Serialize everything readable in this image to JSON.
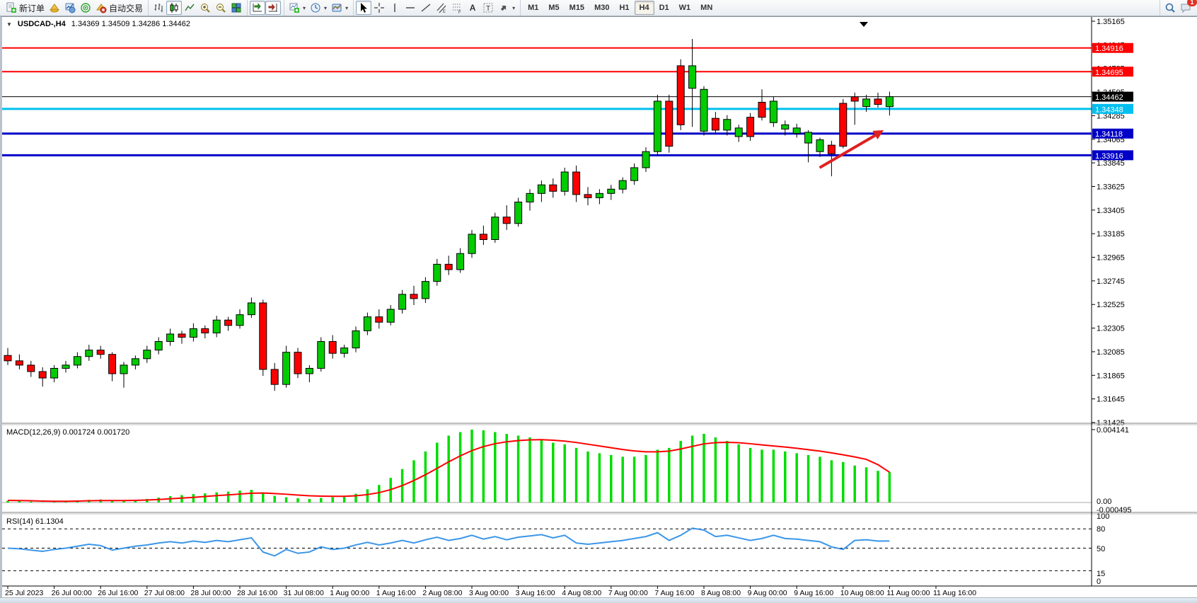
{
  "toolbar": {
    "new_order_label": "新订单",
    "autotrade_label": "自动交易",
    "text_tool_a": "A",
    "text_tool_t": "T",
    "timeframes": [
      "M1",
      "M5",
      "M15",
      "M30",
      "H1",
      "H4",
      "D1",
      "W1",
      "MN"
    ],
    "active_timeframe": "H4",
    "notification_count": "1"
  },
  "chart": {
    "symbol_title": "USDCAD-,H4",
    "ohlc_text": "1.34369 1.34509 1.34286 1.34462",
    "current_price": "1.34462",
    "price_axis_ticks": [
      "1.35165",
      "1.34945",
      "1.34725",
      "1.34505",
      "1.34285",
      "1.34065",
      "1.33845",
      "1.33625",
      "1.33405",
      "1.33185",
      "1.32965",
      "1.32745",
      "1.32525",
      "1.32305",
      "1.32085",
      "1.31865",
      "1.31645",
      "1.31425"
    ],
    "x_axis_labels": [
      "25 Jul 2023",
      "26 Jul 00:00",
      "26 Jul 16:00",
      "27 Jul 08:00",
      "28 Jul 00:00",
      "28 Jul 16:00",
      "31 Jul 08:00",
      "1 Aug 00:00",
      "1 Aug 16:00",
      "2 Aug 08:00",
      "3 Aug 00:00",
      "3 Aug 16:00",
      "4 Aug 08:00",
      "7 Aug 00:00",
      "7 Aug 16:00",
      "8 Aug 08:00",
      "9 Aug 00:00",
      "9 Aug 16:00",
      "10 Aug 08:00",
      "11 Aug 00:00",
      "11 Aug 16:00"
    ],
    "levels": [
      {
        "name": "resistance-line-1",
        "label": "1.34916",
        "price": 1.34916,
        "color": "#FF0000",
        "width": 2,
        "tag_fg": "#FFFFFF"
      },
      {
        "name": "resistance-line-2",
        "label": "1.34695",
        "price": 1.34695,
        "color": "#FF0000",
        "width": 2,
        "tag_fg": "#FFFFFF"
      },
      {
        "name": "current-price-line",
        "label": "1.34462",
        "price": 1.34462,
        "color": "#000000",
        "width": 1,
        "tag_fg": "#FFFFFF"
      },
      {
        "name": "support-line-cyan",
        "label": "1.34348",
        "price": 1.34348,
        "color": "#00BFEF",
        "width": 3,
        "tag_fg": "#FFFFFF"
      },
      {
        "name": "support-line-blue-1",
        "label": "1.34118",
        "price": 1.34118,
        "color": "#0000C8",
        "width": 3,
        "tag_fg": "#FFFFFF"
      },
      {
        "name": "support-line-blue-2",
        "label": "1.33916",
        "price": 1.33916,
        "color": "#0000C8",
        "width": 3,
        "tag_fg": "#FFFFFF"
      }
    ],
    "colors": {
      "bull": "#00CC00",
      "bear": "#FF0000",
      "wick": "#000000",
      "macd_hist": "#00DD00",
      "macd_signal": "#FF0000",
      "rsi_line": "#3C96E8",
      "arrow": "#E02020",
      "axis_text": "#000000"
    }
  },
  "macd_panel": {
    "label": "MACD(12,26,9)",
    "values_text": "0.001724 0.001720",
    "scale_max": "0.004141",
    "scale_zero": "0.00",
    "scale_min": "-0.000495"
  },
  "rsi_panel": {
    "label": "RSI(14)",
    "value_text": "61.1304",
    "scale_ticks": [
      "100",
      "80",
      "50",
      "15",
      "0"
    ],
    "level_lines": [
      80,
      50,
      15
    ]
  },
  "chart_data": {
    "type": "candlestick",
    "symbol": "USDCAD",
    "timeframe": "H4",
    "ylim": [
      1.31425,
      1.35165
    ],
    "grid": false,
    "candles_format": [
      "time",
      "open",
      "high",
      "low",
      "close"
    ],
    "candles": [
      [
        "25.07 08:00",
        1.3205,
        1.3212,
        1.3196,
        1.32
      ],
      [
        "25.07 12:00",
        1.32,
        1.3206,
        1.3192,
        1.3196
      ],
      [
        "25.07 16:00",
        1.3196,
        1.32,
        1.3185,
        1.319
      ],
      [
        "25.07 20:00",
        1.319,
        1.3194,
        1.3176,
        1.3184
      ],
      [
        "26.07 00:00",
        1.3184,
        1.3196,
        1.318,
        1.3193
      ],
      [
        "26.07 04:00",
        1.3193,
        1.32,
        1.3189,
        1.3196
      ],
      [
        "26.07 08:00",
        1.3196,
        1.3208,
        1.3193,
        1.3204
      ],
      [
        "26.07 12:00",
        1.3204,
        1.3215,
        1.32,
        1.321
      ],
      [
        "26.07 16:00",
        1.321,
        1.3214,
        1.3202,
        1.3206
      ],
      [
        "26.07 20:00",
        1.3206,
        1.3208,
        1.3181,
        1.3188
      ],
      [
        "27.07 00:00",
        1.3188,
        1.3199,
        1.3175,
        1.3196
      ],
      [
        "27.07 04:00",
        1.3196,
        1.3205,
        1.3192,
        1.3202
      ],
      [
        "27.07 08:00",
        1.3202,
        1.3214,
        1.3198,
        1.321
      ],
      [
        "27.07 12:00",
        1.321,
        1.3222,
        1.3206,
        1.3218
      ],
      [
        "27.07 16:00",
        1.3218,
        1.323,
        1.3214,
        1.3225
      ],
      [
        "27.07 20:00",
        1.3225,
        1.3228,
        1.3216,
        1.3222
      ],
      [
        "28.07 00:00",
        1.3222,
        1.3235,
        1.3218,
        1.323
      ],
      [
        "28.07 04:00",
        1.323,
        1.3233,
        1.3221,
        1.3226
      ],
      [
        "28.07 08:00",
        1.3226,
        1.3242,
        1.3222,
        1.3238
      ],
      [
        "28.07 12:00",
        1.3238,
        1.3241,
        1.3228,
        1.3233
      ],
      [
        "28.07 16:00",
        1.3233,
        1.3248,
        1.323,
        1.3243
      ],
      [
        "28.07 20:00",
        1.3243,
        1.3259,
        1.324,
        1.3254
      ],
      [
        "31.07 00:00",
        1.3254,
        1.3257,
        1.3186,
        1.3192
      ],
      [
        "31.07 04:00",
        1.3192,
        1.3198,
        1.3172,
        1.3178
      ],
      [
        "31.07 08:00",
        1.3178,
        1.3214,
        1.3175,
        1.3208
      ],
      [
        "31.07 12:00",
        1.3208,
        1.3212,
        1.3184,
        1.3188
      ],
      [
        "31.07 16:00",
        1.3188,
        1.3196,
        1.318,
        1.3193
      ],
      [
        "31.07 20:00",
        1.3193,
        1.3222,
        1.319,
        1.3218
      ],
      [
        "01.08 00:00",
        1.3218,
        1.3224,
        1.3202,
        1.3207
      ],
      [
        "01.08 04:00",
        1.3207,
        1.3215,
        1.3203,
        1.3212
      ],
      [
        "01.08 08:00",
        1.3212,
        1.3232,
        1.3208,
        1.3228
      ],
      [
        "01.08 12:00",
        1.3228,
        1.3245,
        1.3224,
        1.3241
      ],
      [
        "01.08 16:00",
        1.3241,
        1.3248,
        1.323,
        1.3236
      ],
      [
        "01.08 20:00",
        1.3236,
        1.3252,
        1.3233,
        1.3248
      ],
      [
        "02.08 00:00",
        1.3248,
        1.3266,
        1.3244,
        1.3262
      ],
      [
        "02.08 04:00",
        1.3262,
        1.327,
        1.3252,
        1.3258
      ],
      [
        "02.08 08:00",
        1.3258,
        1.3278,
        1.3254,
        1.3274
      ],
      [
        "02.08 12:00",
        1.3274,
        1.3295,
        1.327,
        1.329
      ],
      [
        "02.08 16:00",
        1.329,
        1.3298,
        1.328,
        1.3285
      ],
      [
        "02.08 20:00",
        1.3285,
        1.3305,
        1.3282,
        1.33
      ],
      [
        "03.08 00:00",
        1.33,
        1.3322,
        1.3296,
        1.3318
      ],
      [
        "03.08 04:00",
        1.3318,
        1.3326,
        1.3308,
        1.3313
      ],
      [
        "03.08 08:00",
        1.3313,
        1.3338,
        1.331,
        1.3334
      ],
      [
        "03.08 12:00",
        1.3334,
        1.3345,
        1.3322,
        1.3328
      ],
      [
        "03.08 16:00",
        1.3328,
        1.3352,
        1.3325,
        1.3348
      ],
      [
        "03.08 20:00",
        1.3348,
        1.336,
        1.334,
        1.3356
      ],
      [
        "04.08 00:00",
        1.3356,
        1.3368,
        1.3348,
        1.3364
      ],
      [
        "04.08 04:00",
        1.3364,
        1.337,
        1.3352,
        1.3358
      ],
      [
        "04.08 08:00",
        1.3358,
        1.338,
        1.3354,
        1.3376
      ],
      [
        "04.08 12:00",
        1.3376,
        1.3382,
        1.3348,
        1.3355
      ],
      [
        "04.08 16:00",
        1.3355,
        1.3362,
        1.3345,
        1.3352
      ],
      [
        "04.08 20:00",
        1.3352,
        1.336,
        1.3346,
        1.3356
      ],
      [
        "07.08 00:00",
        1.3356,
        1.3364,
        1.335,
        1.336
      ],
      [
        "07.08 04:00",
        1.336,
        1.3371,
        1.3356,
        1.3368
      ],
      [
        "07.08 08:00",
        1.3368,
        1.3384,
        1.3364,
        1.338
      ],
      [
        "07.08 12:00",
        1.338,
        1.3399,
        1.3376,
        1.3395
      ],
      [
        "07.08 16:00",
        1.3395,
        1.3448,
        1.3391,
        1.3442
      ],
      [
        "07.08 20:00",
        1.3442,
        1.3448,
        1.3394,
        1.34
      ],
      [
        "08.08 00:00",
        1.3475,
        1.3481,
        1.3415,
        1.342
      ],
      [
        "08.08 04:00",
        1.3454,
        1.35,
        1.3418,
        1.3475
      ],
      [
        "08.08 08:00",
        1.3414,
        1.3456,
        1.341,
        1.3453
      ],
      [
        "08.08 12:00",
        1.3426,
        1.3432,
        1.3412,
        1.3415
      ],
      [
        "08.08 16:00",
        1.3415,
        1.3429,
        1.341,
        1.3425
      ],
      [
        "08.08 20:00",
        1.3409,
        1.342,
        1.3404,
        1.3417
      ],
      [
        "09.08 00:00",
        1.3427,
        1.3431,
        1.3405,
        1.3409
      ],
      [
        "09.08 04:00",
        1.3441,
        1.3453,
        1.3424,
        1.3427
      ],
      [
        "09.08 08:00",
        1.3422,
        1.3446,
        1.3418,
        1.3442
      ],
      [
        "09.08 12:00",
        1.3416,
        1.3424,
        1.341,
        1.342
      ],
      [
        "09.08 16:00",
        1.3412,
        1.3421,
        1.3408,
        1.3417
      ],
      [
        "09.08 20:00",
        1.3403,
        1.3415,
        1.3385,
        1.3413
      ],
      [
        "10.08 00:00",
        1.3395,
        1.3408,
        1.339,
        1.3406
      ],
      [
        "10.08 04:00",
        1.3401,
        1.3405,
        1.3372,
        1.3393
      ],
      [
        "10.08 08:00",
        1.344,
        1.3444,
        1.3398,
        1.34
      ],
      [
        "10.08 12:00",
        1.3446,
        1.345,
        1.342,
        1.3442
      ],
      [
        "10.08 16:00",
        1.3437,
        1.3448,
        1.3432,
        1.3444
      ],
      [
        "10.08 20:00",
        1.3444,
        1.345,
        1.3436,
        1.3439
      ],
      [
        "11.08 00:00",
        1.34369,
        1.34509,
        1.34286,
        1.34462
      ]
    ],
    "macd": {
      "ylim": [
        -0.000495,
        0.004141
      ],
      "histogram": [
        0.0001,
        8e-05,
        5e-05,
        2e-05,
        4e-05,
        6e-05,
        0.0001,
        0.00015,
        0.00017,
        0.0001,
        0.00012,
        0.00016,
        0.0002,
        0.00028,
        0.00036,
        0.00042,
        0.00048,
        0.00052,
        0.00058,
        0.00062,
        0.00068,
        0.00072,
        0.00058,
        0.00038,
        0.0003,
        0.00024,
        0.0002,
        0.00026,
        0.0003,
        0.00038,
        0.0005,
        0.00075,
        0.001,
        0.0014,
        0.0019,
        0.0024,
        0.0029,
        0.0034,
        0.0038,
        0.004,
        0.00414,
        0.0041,
        0.004,
        0.0039,
        0.0038,
        0.0037,
        0.0036,
        0.0034,
        0.0033,
        0.0031,
        0.0029,
        0.0028,
        0.0027,
        0.0026,
        0.0026,
        0.0027,
        0.003,
        0.0031,
        0.0035,
        0.0038,
        0.0039,
        0.0037,
        0.0035,
        0.0033,
        0.0031,
        0.003,
        0.003,
        0.0029,
        0.0028,
        0.0027,
        0.0026,
        0.0024,
        0.0023,
        0.0021,
        0.002,
        0.0018,
        0.001724
      ],
      "signal": [
        0.00012,
        0.00011,
        0.0001,
        8e-05,
        7e-05,
        7e-05,
        8e-05,
        0.0001,
        0.00011,
        0.00011,
        0.00011,
        0.00012,
        0.00014,
        0.00017,
        0.00021,
        0.00025,
        0.00029,
        0.00034,
        0.00039,
        0.00043,
        0.00048,
        0.00053,
        0.00054,
        0.00051,
        0.00047,
        0.00042,
        0.00038,
        0.00036,
        0.00035,
        0.00035,
        0.00038,
        0.00045,
        0.00056,
        0.00073,
        0.00096,
        0.00125,
        0.00158,
        0.00194,
        0.00231,
        0.00265,
        0.00295,
        0.00318,
        0.00334,
        0.00345,
        0.00352,
        0.00356,
        0.00357,
        0.00354,
        0.00349,
        0.00341,
        0.00331,
        0.00321,
        0.00311,
        0.00301,
        0.00293,
        0.00288,
        0.00288,
        0.00292,
        0.00304,
        0.00319,
        0.00333,
        0.0034,
        0.00342,
        0.0034,
        0.00334,
        0.00327,
        0.00321,
        0.00315,
        0.00308,
        0.003,
        0.00292,
        0.00282,
        0.00271,
        0.00259,
        0.00245,
        0.00215,
        0.00172
      ]
    },
    "rsi": {
      "ylim": [
        0,
        100
      ],
      "values": [
        50,
        49,
        47,
        45,
        48,
        50,
        53,
        56,
        54,
        47,
        50,
        53,
        55,
        58,
        60,
        58,
        61,
        59,
        62,
        60,
        63,
        66,
        44,
        38,
        48,
        42,
        44,
        52,
        48,
        50,
        55,
        59,
        55,
        58,
        62,
        58,
        63,
        67,
        62,
        65,
        70,
        64,
        68,
        63,
        67,
        69,
        71,
        66,
        70,
        58,
        56,
        58,
        60,
        62,
        65,
        68,
        74,
        62,
        70,
        81,
        78,
        68,
        70,
        66,
        62,
        65,
        70,
        65,
        64,
        62,
        60,
        52,
        48,
        62,
        63,
        61,
        61.13
      ]
    },
    "annotations": [
      {
        "type": "arrow",
        "desc": "red up-right trend arrow",
        "x1_candle": 69,
        "x2_candle": 75,
        "y1_price": 1.338,
        "y2_price": 1.3415
      }
    ]
  }
}
